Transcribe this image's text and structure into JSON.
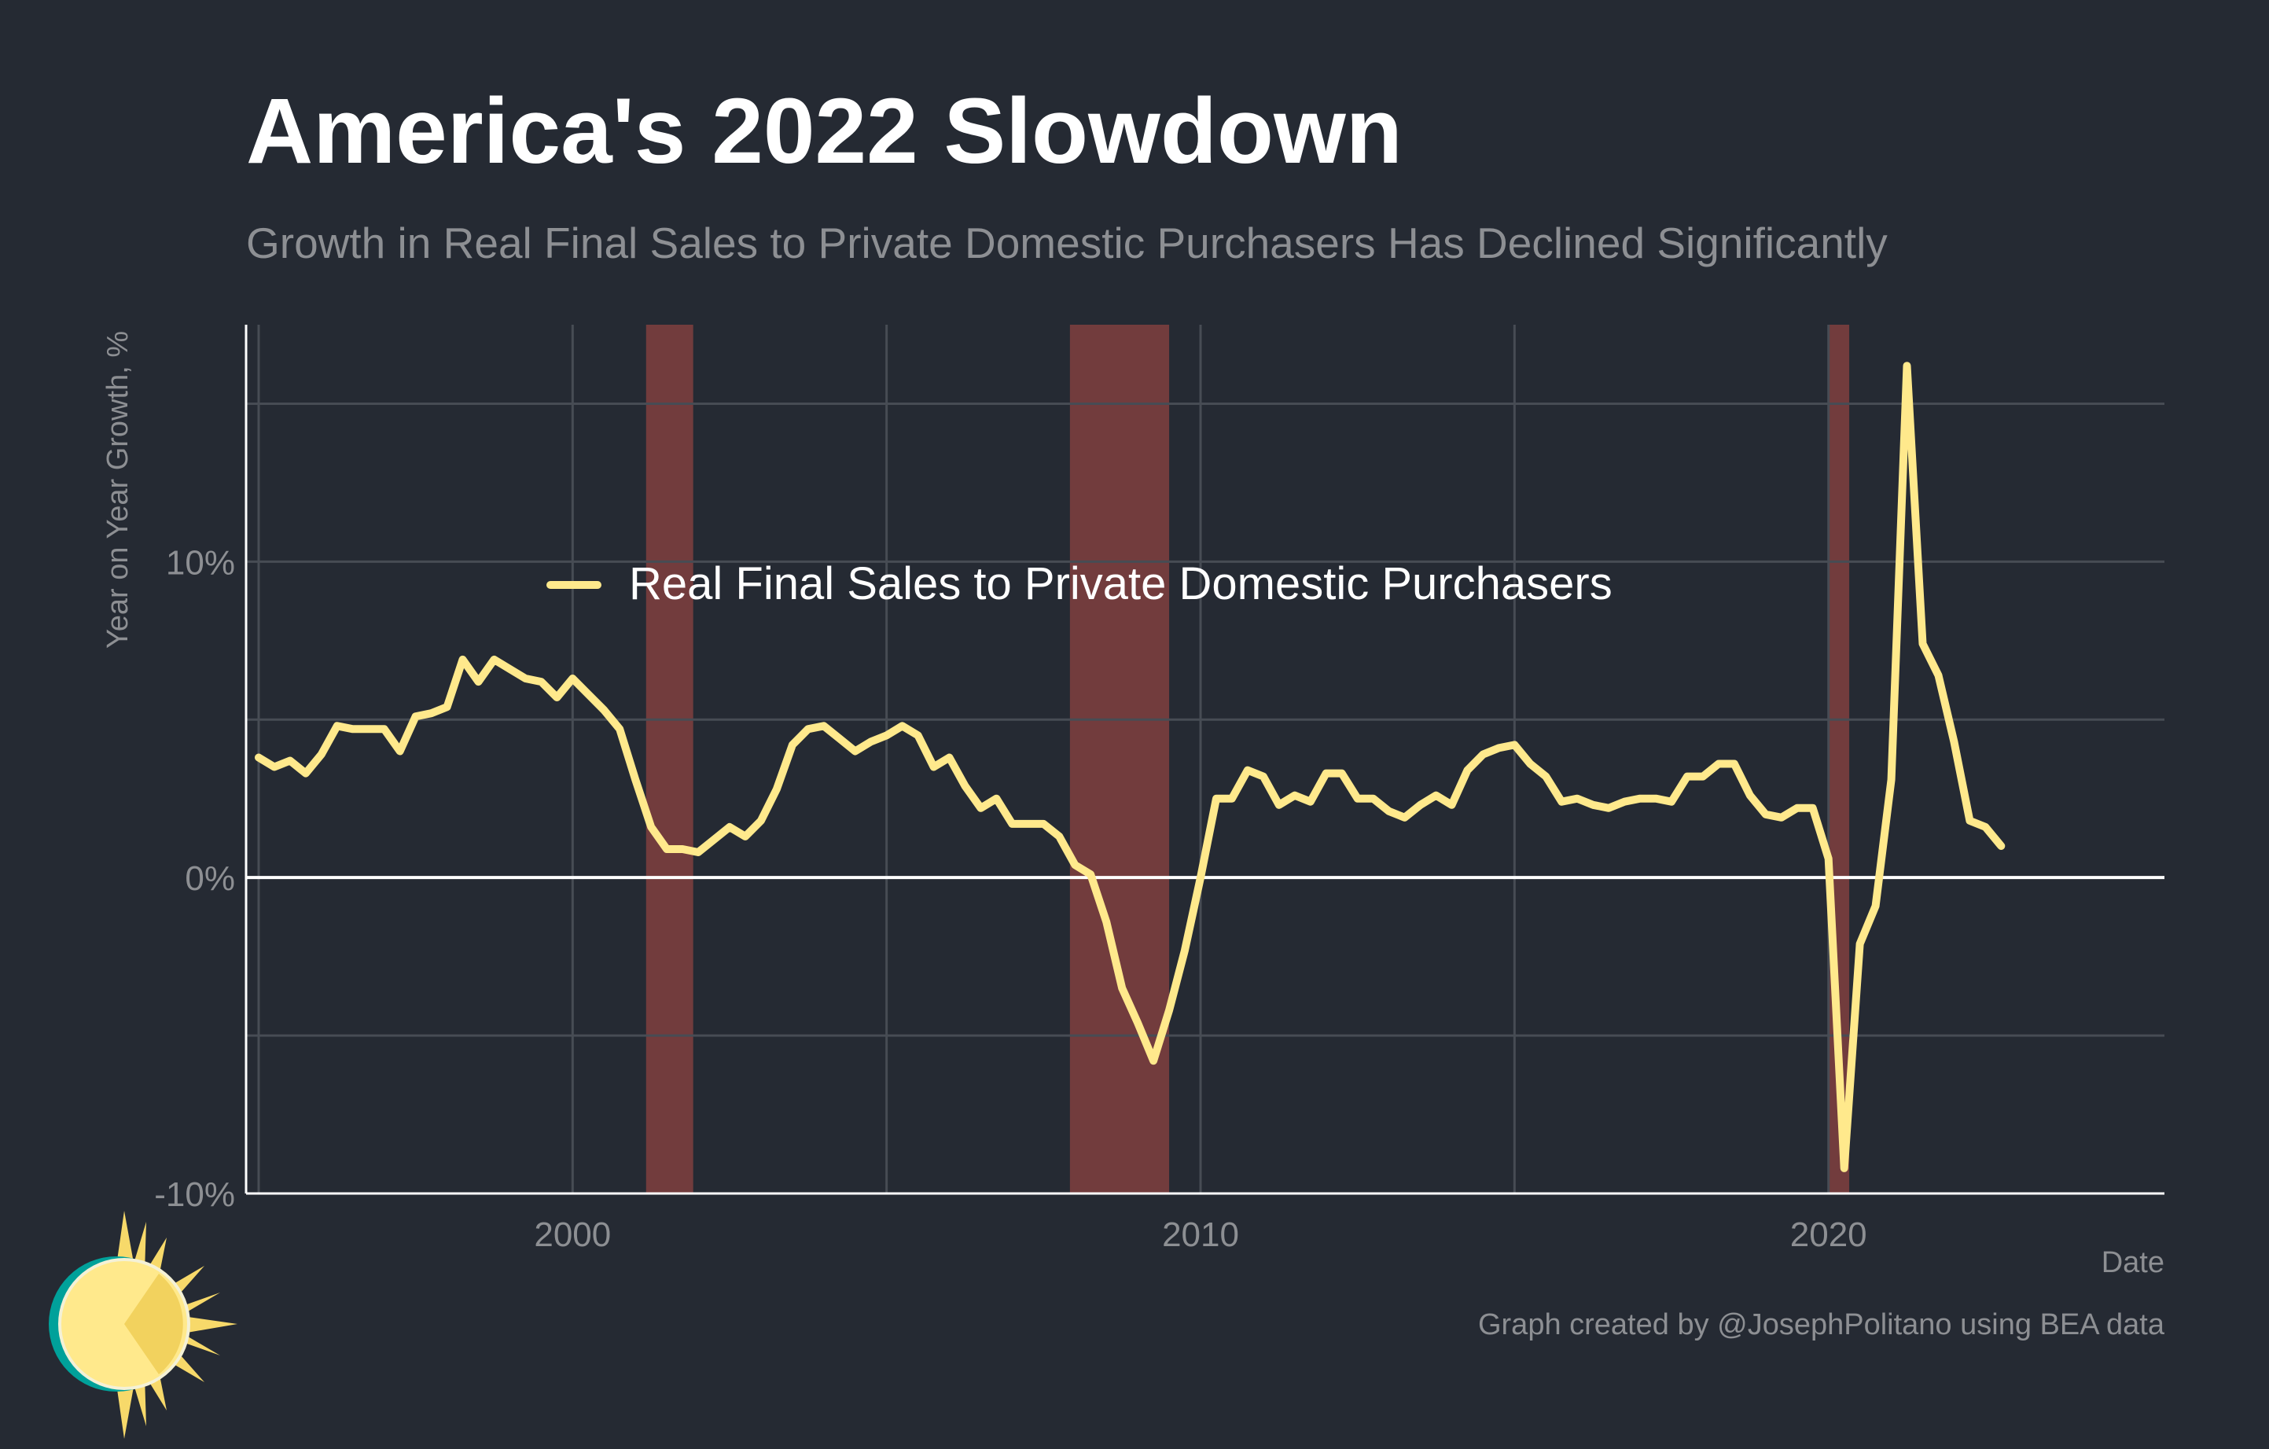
{
  "header": {
    "title": "America's 2022 Slowdown",
    "subtitle": "Growth in Real Final Sales to Private Domestic Purchasers Has Declined Significantly"
  },
  "footer": {
    "caption": "Graph created by @JosephPolitano using BEA data"
  },
  "colors": {
    "background": "#252a33",
    "line": "#ffe98c",
    "recession": "#723c3d",
    "grid": "#474c54",
    "zero_line": "#ffffff",
    "muted_text": "#8d8f93",
    "logo_ring": "#00a19a",
    "logo_sun": "#ffe98c"
  },
  "logo": {
    "icon": "sun-icon"
  },
  "chart_data": {
    "type": "line",
    "title": "America's 2022 Slowdown",
    "subtitle": "Growth in Real Final Sales to Private Domestic Purchasers Has Declined Significantly",
    "xlabel": "Date",
    "ylabel": "Year on Year Growth, %",
    "xlim": [
      1994.8,
      2025.35
    ],
    "ylim": [
      -10,
      17.5
    ],
    "x_ticks": [
      2000,
      2010,
      2020
    ],
    "x_tick_labels": [
      "2000",
      "2010",
      "2020"
    ],
    "y_ticks": [
      -10,
      0,
      10
    ],
    "y_tick_labels": [
      "-10%",
      "0%",
      "10%"
    ],
    "grid": true,
    "legend_position": "inside-top-left",
    "recessions": [
      [
        2001.17,
        2001.92
      ],
      [
        2007.92,
        2009.5
      ],
      [
        2020.0,
        2020.33
      ]
    ],
    "series": [
      {
        "name": "Real Final Sales to Private Domestic Purchasers",
        "x": [
          1995.0,
          1995.25,
          1995.5,
          1995.75,
          1996.0,
          1996.25,
          1996.5,
          1996.75,
          1997.0,
          1997.25,
          1997.5,
          1997.75,
          1998.0,
          1998.25,
          1998.5,
          1998.75,
          1999.0,
          1999.25,
          1999.5,
          1999.75,
          2000.0,
          2000.25,
          2000.5,
          2000.75,
          2001.0,
          2001.25,
          2001.5,
          2001.75,
          2002.0,
          2002.25,
          2002.5,
          2002.75,
          2003.0,
          2003.25,
          2003.5,
          2003.75,
          2004.0,
          2004.25,
          2004.5,
          2004.75,
          2005.0,
          2005.25,
          2005.5,
          2005.75,
          2006.0,
          2006.25,
          2006.5,
          2006.75,
          2007.0,
          2007.25,
          2007.5,
          2007.75,
          2008.0,
          2008.25,
          2008.5,
          2008.75,
          2009.0,
          2009.25,
          2009.5,
          2009.75,
          2010.0,
          2010.25,
          2010.5,
          2010.75,
          2011.0,
          2011.25,
          2011.5,
          2011.75,
          2012.0,
          2012.25,
          2012.5,
          2012.75,
          2013.0,
          2013.25,
          2013.5,
          2013.75,
          2014.0,
          2014.25,
          2014.5,
          2014.75,
          2015.0,
          2015.25,
          2015.5,
          2015.75,
          2016.0,
          2016.25,
          2016.5,
          2016.75,
          2017.0,
          2017.25,
          2017.5,
          2017.75,
          2018.0,
          2018.25,
          2018.5,
          2018.75,
          2019.0,
          2019.25,
          2019.5,
          2019.75,
          2020.0,
          2020.25,
          2020.5,
          2020.75,
          2021.0,
          2021.25,
          2021.5,
          2021.75,
          2022.0,
          2022.25,
          2022.5,
          2022.75
        ],
        "y": [
          3.8,
          3.5,
          3.7,
          3.3,
          3.9,
          4.8,
          4.7,
          4.7,
          4.7,
          4.0,
          5.1,
          5.2,
          5.4,
          6.9,
          6.2,
          6.9,
          6.6,
          6.3,
          6.2,
          5.7,
          6.3,
          5.8,
          5.3,
          4.7,
          3.1,
          1.6,
          0.9,
          0.9,
          0.8,
          1.2,
          1.6,
          1.3,
          1.8,
          2.8,
          4.2,
          4.7,
          4.8,
          4.4,
          4.0,
          4.3,
          4.5,
          4.8,
          4.5,
          3.5,
          3.8,
          2.9,
          2.2,
          2.5,
          1.7,
          1.7,
          1.7,
          1.3,
          0.4,
          0.1,
          -1.4,
          -3.5,
          -4.6,
          -5.8,
          -4.2,
          -2.3,
          0.0,
          2.5,
          2.5,
          3.4,
          3.2,
          2.3,
          2.6,
          2.4,
          3.3,
          3.3,
          2.5,
          2.5,
          2.1,
          1.9,
          2.3,
          2.6,
          2.3,
          3.4,
          3.9,
          4.1,
          4.2,
          3.6,
          3.2,
          2.4,
          2.5,
          2.3,
          2.2,
          2.4,
          2.5,
          2.5,
          2.4,
          3.2,
          3.2,
          3.6,
          3.6,
          2.6,
          2.0,
          1.9,
          2.2,
          2.2,
          0.6,
          -9.2,
          -2.1,
          -0.9,
          3.1,
          16.2,
          7.4,
          6.4,
          4.3,
          1.8,
          1.6,
          1.0
        ]
      }
    ]
  }
}
